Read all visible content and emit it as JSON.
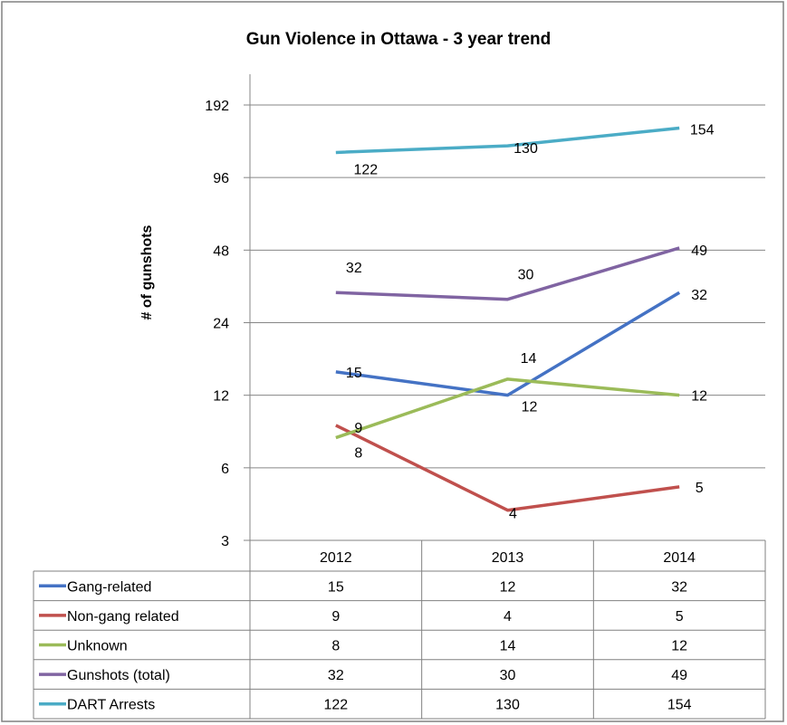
{
  "chart_data": {
    "type": "line",
    "title": "Gun Violence in Ottawa - 3 year trend",
    "ylabel": "# of gunshots",
    "xlabel": "",
    "y_scale": "log2",
    "ylim": [
      3,
      192
    ],
    "yticks": [
      3,
      6,
      12,
      24,
      48,
      96,
      192
    ],
    "yticks_labels": [
      "3",
      "6",
      "12",
      "24",
      "48",
      "96",
      "192"
    ],
    "categories": [
      "2012",
      "2013",
      "2014"
    ],
    "grid": true,
    "legend": "data-table-below",
    "series": [
      {
        "name": "Gang-related",
        "color": "#4472C4",
        "values": [
          15,
          12,
          32
        ],
        "labels": [
          "15",
          "12",
          "32"
        ]
      },
      {
        "name": "Non-gang related",
        "color": "#C0504D",
        "values": [
          9,
          4,
          5
        ],
        "labels": [
          "9",
          "4",
          "5"
        ]
      },
      {
        "name": "Unknown",
        "color": "#9BBB59",
        "values": [
          8,
          14,
          12
        ],
        "labels": [
          "8",
          "14",
          "12"
        ]
      },
      {
        "name": "Gunshots (total)",
        "color": "#8064A2",
        "values": [
          32,
          30,
          49
        ],
        "labels": [
          "32",
          "30",
          "49"
        ]
      },
      {
        "name": "DART Arrests",
        "color": "#4BACC6",
        "values": [
          122,
          130,
          154
        ],
        "labels": [
          "122",
          "130",
          "154"
        ]
      }
    ]
  }
}
